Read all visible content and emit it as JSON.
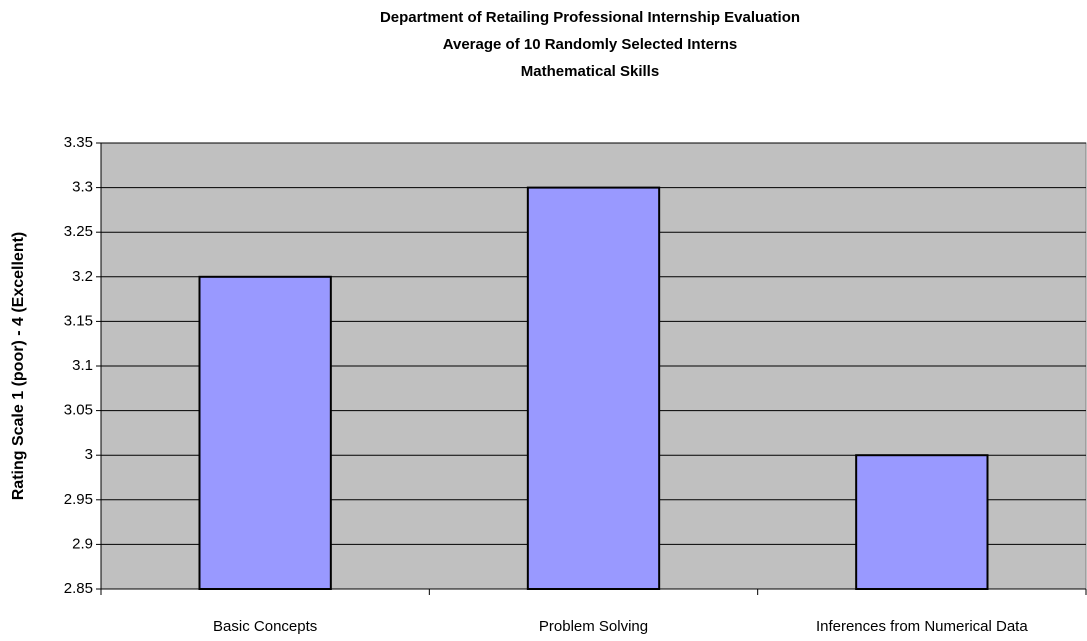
{
  "chart_data": {
    "type": "bar",
    "title": [
      "Department of Retailing Professional Internship Evaluation",
      "Average of 10 Randomly Selected Interns",
      "Mathematical Skills"
    ],
    "y_label": "Rating Scale 1 (poor) - 4 (Excellent)",
    "categories": [
      "Basic Concepts",
      "Problem Solving",
      "Inferences from Numerical Data"
    ],
    "values": [
      3.2,
      3.3,
      3.0
    ],
    "color": "#9999ff",
    "ylim": [
      2.85,
      3.35
    ],
    "yticks": [
      2.85,
      2.9,
      2.95,
      3,
      3.05,
      3.1,
      3.15,
      3.2,
      3.25,
      3.3,
      3.35
    ],
    "grid": true
  }
}
